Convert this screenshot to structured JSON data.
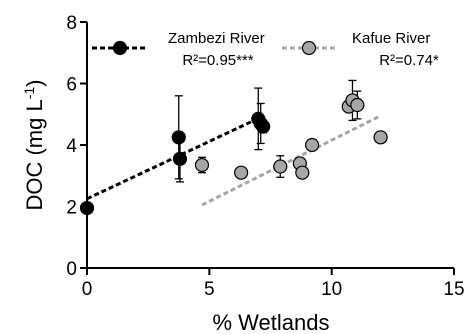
{
  "chart_data": {
    "type": "scatter",
    "xlabel": "% Wetlands",
    "ylabel_main": "DOC (mg L",
    "ylabel_sup": "-1",
    "ylabel_close": ")",
    "xlim": [
      0,
      15
    ],
    "ylim": [
      0,
      8
    ],
    "xticks": [
      0,
      5,
      10,
      15
    ],
    "yticks": [
      0,
      2,
      4,
      6,
      8
    ],
    "grid": false,
    "series": [
      {
        "name": "Zambezi River",
        "r2_label": "R²=0.95***",
        "marker_color": "#000000",
        "line_color": "#000000",
        "points": [
          {
            "x": 0.0,
            "y": 1.95,
            "err": 0.0
          },
          {
            "x": 3.75,
            "y": 4.25,
            "err": 1.35
          },
          {
            "x": 3.8,
            "y": 3.55,
            "err": 0.75
          },
          {
            "x": 7.0,
            "y": 4.85,
            "err": 1.0
          },
          {
            "x": 7.1,
            "y": 4.7,
            "err": 0.65
          },
          {
            "x": 7.2,
            "y": 4.6,
            "err": 0.2
          }
        ],
        "fit": {
          "x0": 0.0,
          "y0": 2.25,
          "x1": 7.1,
          "y1": 4.9
        }
      },
      {
        "name": "Kafue River",
        "r2_label": "R²=0.74*",
        "marker_color": "#a6a6a6",
        "line_color": "#a6a6a6",
        "points": [
          {
            "x": 4.7,
            "y": 3.35,
            "err": 0.25
          },
          {
            "x": 6.3,
            "y": 3.1,
            "err": 0.0
          },
          {
            "x": 7.9,
            "y": 3.3,
            "err": 0.35
          },
          {
            "x": 8.7,
            "y": 3.4,
            "err": 0.0
          },
          {
            "x": 8.8,
            "y": 3.1,
            "err": 0.0
          },
          {
            "x": 9.2,
            "y": 4.0,
            "err": 0.0
          },
          {
            "x": 10.7,
            "y": 5.25,
            "err": 0.0
          },
          {
            "x": 10.85,
            "y": 5.45,
            "err": 0.65
          },
          {
            "x": 11.05,
            "y": 5.3,
            "err": 0.45
          },
          {
            "x": 12.0,
            "y": 4.25,
            "err": 0.0
          }
        ],
        "fit": {
          "x0": 4.7,
          "y0": 2.05,
          "x1": 12.0,
          "y1": 4.95
        }
      }
    ]
  }
}
